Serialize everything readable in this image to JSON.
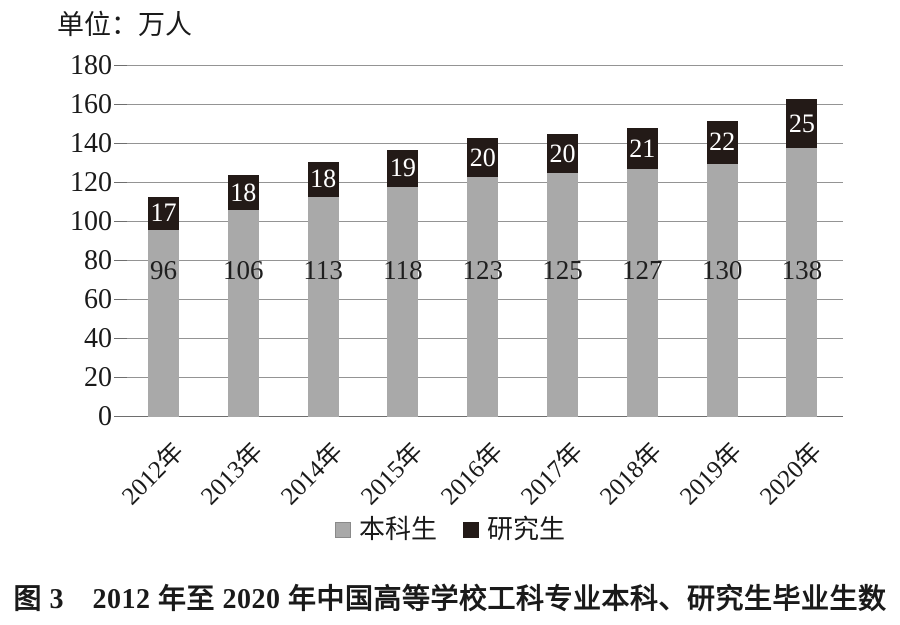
{
  "page": {
    "background": "#ffffff"
  },
  "chart_data": {
    "type": "bar",
    "stacked": true,
    "unit_label": "单位：万人",
    "categories": [
      "2012年",
      "2013年",
      "2014年",
      "2015年",
      "2016年",
      "2017年",
      "2018年",
      "2019年",
      "2020年"
    ],
    "series": [
      {
        "name": "本科生",
        "values": [
          96,
          106,
          113,
          118,
          123,
          125,
          127,
          130,
          138
        ],
        "color": "#a9a9a9",
        "label_color": "#1f1f1f"
      },
      {
        "name": "研究生",
        "values": [
          17,
          18,
          18,
          19,
          20,
          20,
          21,
          22,
          25
        ],
        "color": "#231a17",
        "label_color": "#ffffff"
      }
    ],
    "ylim": [
      0,
      180
    ],
    "ytick_step": 20,
    "yticks": [
      0,
      20,
      40,
      60,
      80,
      100,
      120,
      140,
      160,
      180
    ],
    "grid": true,
    "legend_position": "bottom",
    "grid_color": "#949494",
    "axis_color": "#6e6e6e",
    "text_color": "#1a1a1a"
  },
  "caption": "图 3　2012 年至 2020 年中国高等学校工科专业本科、研究生毕业生数"
}
